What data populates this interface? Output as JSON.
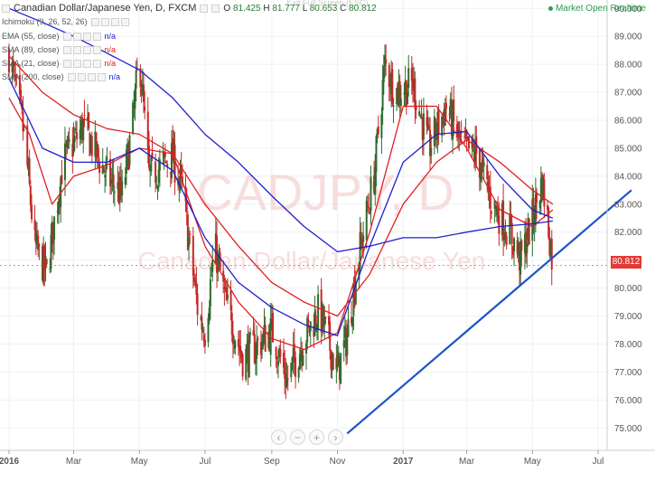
{
  "header": {
    "symbol_title": "Canadian Dollar/Japanese Yen, D, FXCM",
    "ohlc": {
      "o_label": "O",
      "o": "81.425",
      "h_label": "H",
      "h": "81.777",
      "l_label": "L",
      "l": "80.653",
      "c_label": "C",
      "c": "80.812"
    },
    "market_status": "Market Open Realtime",
    "exit_fullscreen": "Exit Full Screen (ESC)"
  },
  "indicators": [
    {
      "label": "Ichimoku (9, 26, 52, 26)",
      "value": "",
      "color": "#555555"
    },
    {
      "label": "EMA (55, close)",
      "value": "n/a",
      "color": "#1f1fd0"
    },
    {
      "label": "SMA (89, close)",
      "value": "n/a",
      "color": "#e02020"
    },
    {
      "label": "SMA (21, close)",
      "value": "n/a",
      "color": "#e02020"
    },
    {
      "label": "SMA (200, close)",
      "value": "n/a",
      "color": "#1f1fd0"
    }
  ],
  "watermark": {
    "symbol": "CADJPY, D",
    "description": "Canadian Dollar/Japanese Yen"
  },
  "last_price": "80.812",
  "zoom_controls": [
    "‹",
    "−",
    "+",
    "›"
  ],
  "colors": {
    "up_candle": "#2e6b2e",
    "down_candle": "#c62828",
    "sma_red": "#e02020",
    "ema_blue": "#1f1fd0",
    "trendline": "#1c54c9",
    "price_tag": "#e53935",
    "grid": "#eef1f4"
  },
  "chart_data": {
    "type": "line",
    "title": "Canadian Dollar/Japanese Yen, D, FXCM",
    "xlabel": "",
    "ylabel": "",
    "ylim": [
      74.2,
      90.3
    ],
    "y_ticks": [
      75.0,
      76.0,
      77.0,
      78.0,
      79.0,
      80.0,
      81.0,
      82.0,
      83.0,
      84.0,
      85.0,
      86.0,
      87.0,
      88.0,
      89.0,
      90.0
    ],
    "y_tick_labels": [
      "75.000",
      "76.000",
      "77.000",
      "78.000",
      "79.000",
      "80.000",
      "81.000",
      "82.000",
      "83.000",
      "84.000",
      "85.000",
      "86.000",
      "87.000",
      "88.000",
      "89.000",
      "90.000"
    ],
    "x_tick_labels": [
      "2016",
      "Mar",
      "May",
      "Jul",
      "Sep",
      "Nov",
      "2017",
      "Mar",
      "May",
      "Jul"
    ],
    "x_tick_dates": [
      "2016-01-01",
      "2016-03-01",
      "2016-05-01",
      "2016-07-01",
      "2016-09-01",
      "2016-11-01",
      "2017-01-01",
      "2017-03-01",
      "2017-05-01",
      "2017-07-01"
    ],
    "grid": true,
    "price_key_points": [
      {
        "date": "2016-01-01",
        "close": 88.4
      },
      {
        "date": "2016-01-15",
        "close": 85.5
      },
      {
        "date": "2016-01-25",
        "close": 81.5
      },
      {
        "date": "2016-02-05",
        "close": 80.5
      },
      {
        "date": "2016-02-20",
        "close": 84.5
      },
      {
        "date": "2016-03-10",
        "close": 85.8
      },
      {
        "date": "2016-04-01",
        "close": 84.0
      },
      {
        "date": "2016-04-15",
        "close": 83.3
      },
      {
        "date": "2016-04-25",
        "close": 86.0
      },
      {
        "date": "2016-05-01",
        "close": 88.3
      },
      {
        "date": "2016-05-10",
        "close": 84.0
      },
      {
        "date": "2016-06-01",
        "close": 84.7
      },
      {
        "date": "2016-06-10",
        "close": 83.5
      },
      {
        "date": "2016-06-25",
        "close": 79.0
      },
      {
        "date": "2016-07-01",
        "close": 78.5
      },
      {
        "date": "2016-07-10",
        "close": 81.5
      },
      {
        "date": "2016-07-20",
        "close": 79.5
      },
      {
        "date": "2016-08-05",
        "close": 77.5
      },
      {
        "date": "2016-08-20",
        "close": 78.0
      },
      {
        "date": "2016-09-01",
        "close": 78.5
      },
      {
        "date": "2016-09-15",
        "close": 76.7
      },
      {
        "date": "2016-10-01",
        "close": 78.2
      },
      {
        "date": "2016-10-15",
        "close": 79.2
      },
      {
        "date": "2016-11-01",
        "close": 77.0
      },
      {
        "date": "2016-11-10",
        "close": 78.3
      },
      {
        "date": "2016-11-20",
        "close": 81.0
      },
      {
        "date": "2016-12-05",
        "close": 84.0
      },
      {
        "date": "2016-12-15",
        "close": 88.0
      },
      {
        "date": "2016-12-25",
        "close": 87.0
      },
      {
        "date": "2017-01-10",
        "close": 87.3
      },
      {
        "date": "2017-01-25",
        "close": 85.0
      },
      {
        "date": "2017-02-10",
        "close": 86.5
      },
      {
        "date": "2017-02-25",
        "close": 85.0
      },
      {
        "date": "2017-03-10",
        "close": 84.8
      },
      {
        "date": "2017-03-25",
        "close": 83.0
      },
      {
        "date": "2017-04-10",
        "close": 82.0
      },
      {
        "date": "2017-04-20",
        "close": 81.0
      },
      {
        "date": "2017-05-01",
        "close": 82.5
      },
      {
        "date": "2017-05-10",
        "close": 83.8
      },
      {
        "date": "2017-05-15",
        "close": 82.5
      },
      {
        "date": "2017-05-20",
        "close": 80.8
      }
    ],
    "series": [
      {
        "name": "SMA (21, close)",
        "color": "#e02020",
        "points": [
          {
            "date": "2016-01-01",
            "value": 86.8
          },
          {
            "date": "2016-01-20",
            "value": 85.5
          },
          {
            "date": "2016-02-10",
            "value": 83.0
          },
          {
            "date": "2016-03-01",
            "value": 84.0
          },
          {
            "date": "2016-04-01",
            "value": 84.4
          },
          {
            "date": "2016-05-01",
            "value": 85.0
          },
          {
            "date": "2016-06-01",
            "value": 84.8
          },
          {
            "date": "2016-07-01",
            "value": 81.5
          },
          {
            "date": "2016-08-01",
            "value": 79.5
          },
          {
            "date": "2016-09-01",
            "value": 78.2
          },
          {
            "date": "2016-10-01",
            "value": 77.8
          },
          {
            "date": "2016-11-01",
            "value": 78.4
          },
          {
            "date": "2016-12-01",
            "value": 82.0
          },
          {
            "date": "2017-01-01",
            "value": 86.5
          },
          {
            "date": "2017-02-01",
            "value": 86.5
          },
          {
            "date": "2017-03-01",
            "value": 85.0
          },
          {
            "date": "2017-04-01",
            "value": 82.8
          },
          {
            "date": "2017-05-01",
            "value": 82.2
          },
          {
            "date": "2017-05-20",
            "value": 82.8
          }
        ]
      },
      {
        "name": "SMA (89, close)",
        "color": "#e02020",
        "points": [
          {
            "date": "2016-01-01",
            "value": 88.3
          },
          {
            "date": "2016-02-01",
            "value": 87.0
          },
          {
            "date": "2016-03-01",
            "value": 86.2
          },
          {
            "date": "2016-04-01",
            "value": 85.7
          },
          {
            "date": "2016-05-01",
            "value": 85.5
          },
          {
            "date": "2016-06-01",
            "value": 84.8
          },
          {
            "date": "2016-07-01",
            "value": 83.0
          },
          {
            "date": "2016-08-01",
            "value": 81.5
          },
          {
            "date": "2016-09-01",
            "value": 80.2
          },
          {
            "date": "2016-10-01",
            "value": 79.5
          },
          {
            "date": "2016-11-01",
            "value": 79.0
          },
          {
            "date": "2016-12-01",
            "value": 80.5
          },
          {
            "date": "2017-01-01",
            "value": 83.0
          },
          {
            "date": "2017-02-01",
            "value": 84.5
          },
          {
            "date": "2017-03-01",
            "value": 85.3
          },
          {
            "date": "2017-04-01",
            "value": 84.5
          },
          {
            "date": "2017-05-01",
            "value": 83.5
          },
          {
            "date": "2017-05-20",
            "value": 83.0
          }
        ]
      },
      {
        "name": "EMA (55, close)",
        "color": "#1f1fd0",
        "points": [
          {
            "date": "2016-01-01",
            "value": 87.5
          },
          {
            "date": "2016-02-01",
            "value": 85.0
          },
          {
            "date": "2016-03-01",
            "value": 84.5
          },
          {
            "date": "2016-04-01",
            "value": 84.5
          },
          {
            "date": "2016-05-01",
            "value": 85.0
          },
          {
            "date": "2016-06-01",
            "value": 84.2
          },
          {
            "date": "2016-07-01",
            "value": 81.8
          },
          {
            "date": "2016-08-01",
            "value": 80.2
          },
          {
            "date": "2016-09-01",
            "value": 79.3
          },
          {
            "date": "2016-10-01",
            "value": 78.7
          },
          {
            "date": "2016-11-01",
            "value": 78.3
          },
          {
            "date": "2016-12-01",
            "value": 81.5
          },
          {
            "date": "2017-01-01",
            "value": 84.5
          },
          {
            "date": "2017-02-01",
            "value": 85.5
          },
          {
            "date": "2017-03-01",
            "value": 85.6
          },
          {
            "date": "2017-04-01",
            "value": 84.0
          },
          {
            "date": "2017-05-01",
            "value": 82.8
          },
          {
            "date": "2017-05-20",
            "value": 82.5
          }
        ]
      },
      {
        "name": "SMA (200, close)",
        "color": "#1f1fd0",
        "points": [
          {
            "date": "2016-01-01",
            "value": 90.0
          },
          {
            "date": "2016-02-01",
            "value": 89.5
          },
          {
            "date": "2016-03-01",
            "value": 89.0
          },
          {
            "date": "2016-04-01",
            "value": 88.4
          },
          {
            "date": "2016-05-01",
            "value": 87.8
          },
          {
            "date": "2016-06-01",
            "value": 86.8
          },
          {
            "date": "2016-07-01",
            "value": 85.5
          },
          {
            "date": "2016-08-01",
            "value": 84.5
          },
          {
            "date": "2016-09-01",
            "value": 83.3
          },
          {
            "date": "2016-10-01",
            "value": 82.2
          },
          {
            "date": "2016-11-01",
            "value": 81.3
          },
          {
            "date": "2016-12-01",
            "value": 81.5
          },
          {
            "date": "2017-01-01",
            "value": 81.8
          },
          {
            "date": "2017-02-01",
            "value": 81.8
          },
          {
            "date": "2017-03-01",
            "value": 82.0
          },
          {
            "date": "2017-04-01",
            "value": 82.2
          },
          {
            "date": "2017-05-01",
            "value": 82.3
          },
          {
            "date": "2017-05-20",
            "value": 82.4
          }
        ]
      }
    ],
    "trendline": {
      "start": {
        "date": "2016-11-10",
        "value": 74.8
      },
      "end": {
        "date": "2017-08-01",
        "value": 83.5
      }
    }
  }
}
